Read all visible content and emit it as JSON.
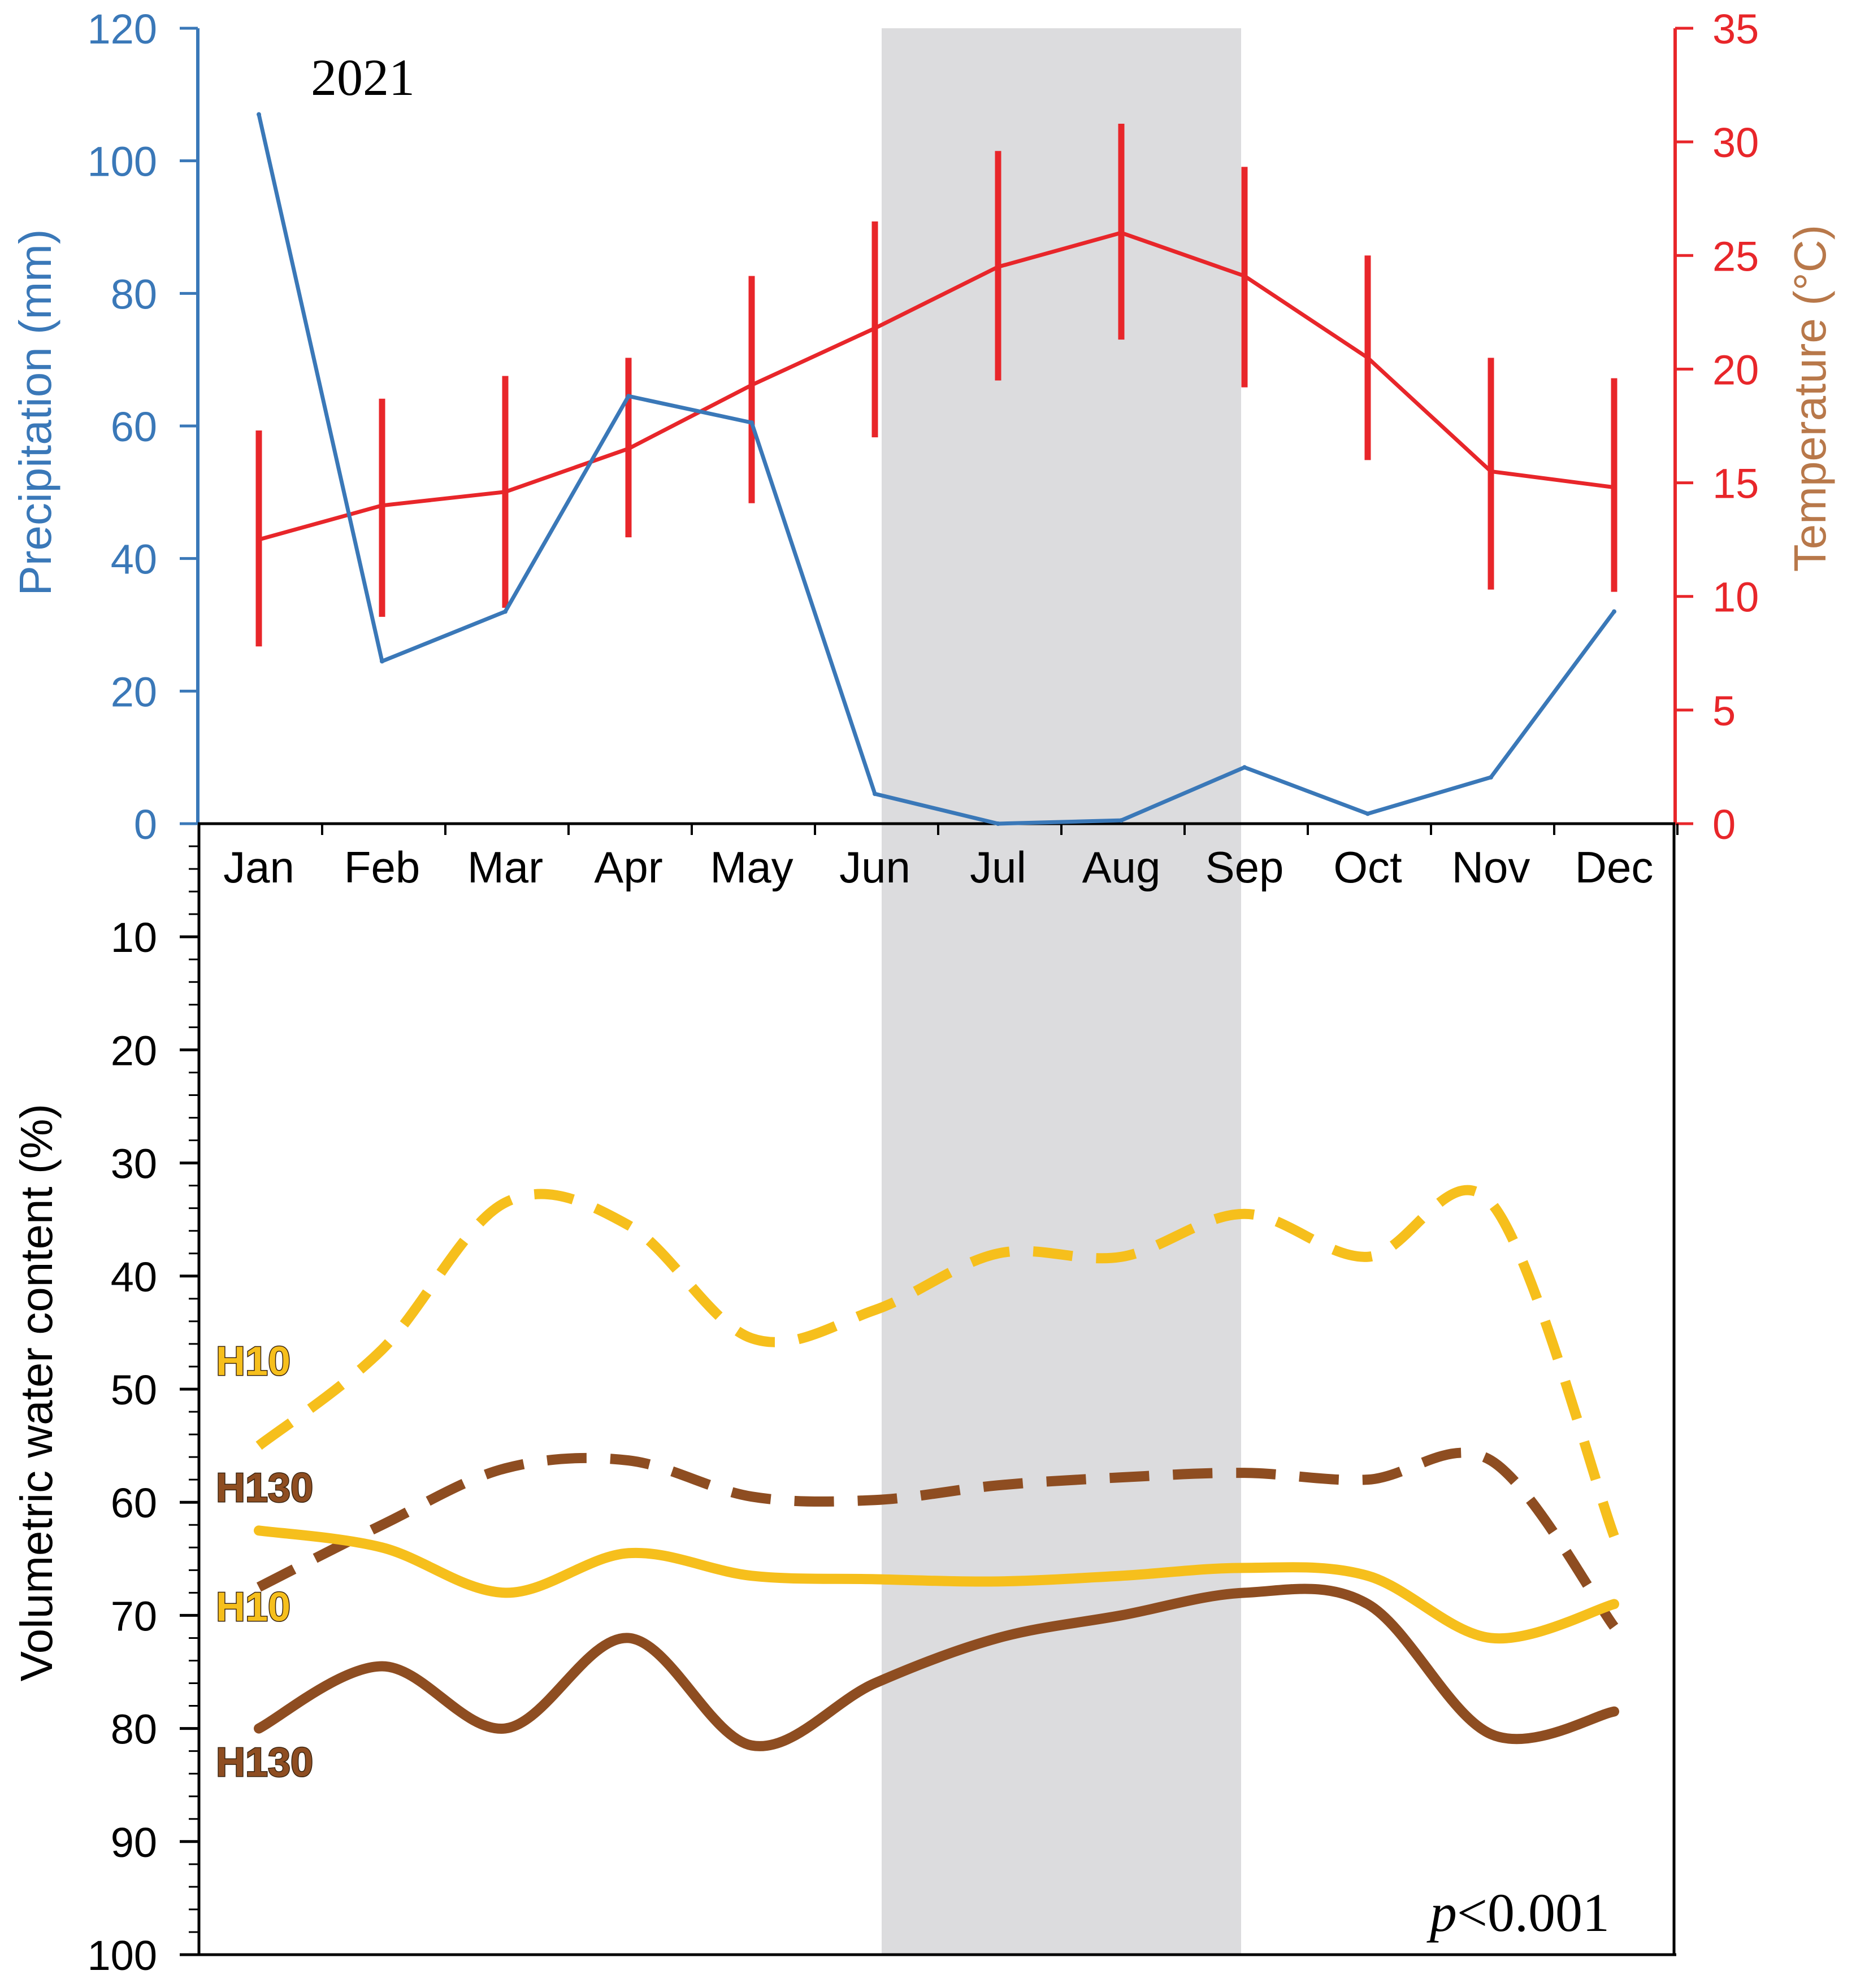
{
  "chart_data": [
    {
      "type": "line",
      "year_label": "2021",
      "categories": [
        "Jan",
        "Feb",
        "Mar",
        "Apr",
        "May",
        "Jun",
        "Jul",
        "Aug",
        "Sep",
        "Oct",
        "Nov",
        "Dec"
      ],
      "shaded_period": [
        "Jun",
        "Sep"
      ],
      "y_left": {
        "label": "Precipitation (mm)",
        "range": [
          0,
          120
        ],
        "ticks": [
          "0",
          "20",
          "40",
          "60",
          "80",
          "100",
          "120"
        ],
        "color": "#3a78b8"
      },
      "y_right": {
        "label": "Temperature (°C)",
        "range": [
          0,
          35
        ],
        "ticks": [
          "0",
          "5",
          "10",
          "15",
          "20",
          "25",
          "30",
          "35"
        ],
        "color": "#e8262a",
        "label_color": "#b8784a"
      },
      "series": [
        {
          "axis": "left",
          "color": "#3a78b8",
          "values": [
            107,
            24.5,
            32,
            64.5,
            60.5,
            4.5,
            0,
            0.5,
            8.5,
            1.5,
            7,
            32
          ]
        },
        {
          "axis": "right",
          "color": "#e8262a",
          "values": [
            12.5,
            14,
            14.6,
            16.5,
            19.3,
            21.8,
            24.5,
            26,
            24.1,
            20.5,
            15.5,
            14.8
          ],
          "error_low": [
            7.8,
            9.1,
            9.5,
            12.6,
            14.1,
            17,
            19.5,
            21.3,
            19.2,
            16,
            10.3,
            10.2
          ],
          "error_high": [
            17.3,
            18.7,
            19.7,
            20.5,
            24.1,
            26.5,
            29.6,
            30.8,
            28.9,
            25,
            20.5,
            19.6
          ]
        }
      ]
    },
    {
      "type": "line",
      "categories": [
        "Jan",
        "Feb",
        "Mar",
        "Apr",
        "May",
        "Jun",
        "Jul",
        "Aug",
        "Sep",
        "Oct",
        "Nov",
        "Dec"
      ],
      "y": {
        "label": "Volumetric water content (%)",
        "range": [
          0,
          100
        ],
        "inverted": true,
        "ticks": [
          "10",
          "20",
          "30",
          "40",
          "50",
          "60",
          "70",
          "80",
          "90",
          "100"
        ]
      },
      "annotation": {
        "italic": "p",
        "rest": "<0.001"
      },
      "series": [
        {
          "name": "H10",
          "style": "dashed",
          "color": "#f6bf1c",
          "values": [
            55,
            46.5,
            33.5,
            35.5,
            45.5,
            43,
            38,
            38.3,
            34.5,
            38.3,
            33.5,
            63
          ]
        },
        {
          "name": "H130",
          "style": "dashed",
          "color": "#8e4d21",
          "values": [
            67.5,
            62,
            57,
            56.3,
            59.5,
            59.8,
            58.5,
            57.8,
            57.4,
            58,
            56.3,
            71
          ]
        },
        {
          "name": "H10",
          "style": "solid",
          "color": "#f6bf1c",
          "values": [
            62.5,
            64,
            68,
            64.5,
            66.5,
            66.8,
            67,
            66.5,
            65.8,
            66.5,
            72,
            69
          ]
        },
        {
          "name": "H130",
          "style": "solid",
          "color": "#8e4d21",
          "values": [
            80,
            74.5,
            80,
            72,
            81.5,
            76,
            72,
            70,
            68,
            69,
            80.5,
            78.5
          ]
        }
      ]
    }
  ]
}
